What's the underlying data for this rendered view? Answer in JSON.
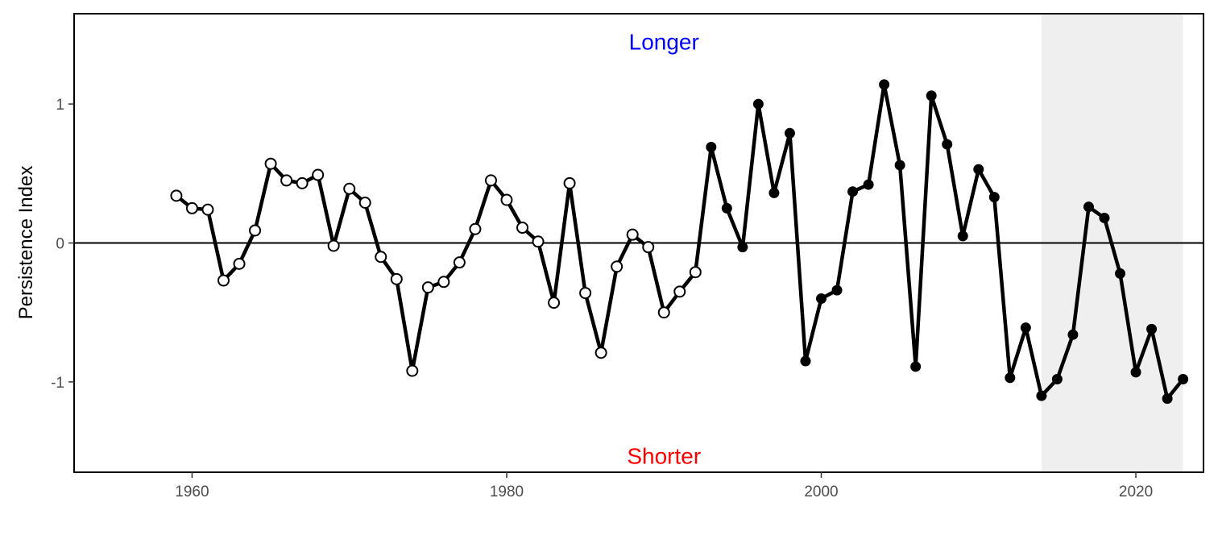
{
  "chart_data": {
    "type": "line",
    "title": "",
    "xlabel": "",
    "ylabel": "Persistence Index",
    "xlim": [
      1952.5,
      2024.3
    ],
    "ylim": [
      -1.65,
      1.65
    ],
    "xticks": [
      1960,
      1980,
      2000,
      2020
    ],
    "yticks": [
      -1,
      0,
      1
    ],
    "ytick_labels": [
      "-1",
      "0",
      "1"
    ],
    "grid": false,
    "legend": "none",
    "reference_line": 0,
    "shaded_period": [
      2014,
      2023
    ],
    "colors": {
      "line": "#000000",
      "shade": "#efefef",
      "longer": "#0000ff",
      "shorter": "#ff0000"
    },
    "annotations": [
      {
        "text": "Longer",
        "x": 1990,
        "y": 1.45,
        "color": "#0000ff"
      },
      {
        "text": "Shorter",
        "x": 1990,
        "y": -1.53,
        "color": "#ff0000"
      }
    ],
    "hollow_until": 1992,
    "x": [
      1959,
      1960,
      1961,
      1962,
      1963,
      1964,
      1965,
      1966,
      1967,
      1968,
      1969,
      1970,
      1971,
      1972,
      1973,
      1974,
      1975,
      1976,
      1977,
      1978,
      1979,
      1980,
      1981,
      1982,
      1983,
      1984,
      1985,
      1986,
      1987,
      1988,
      1989,
      1990,
      1991,
      1992,
      1993,
      1994,
      1995,
      1996,
      1997,
      1998,
      1999,
      2000,
      2001,
      2002,
      2003,
      2004,
      2005,
      2006,
      2007,
      2008,
      2009,
      2010,
      2011,
      2012,
      2013,
      2014,
      2015,
      2016,
      2017,
      2018,
      2019,
      2020,
      2021,
      2022,
      2023
    ],
    "series": [
      {
        "values": [
          0.34,
          0.25,
          0.24,
          -0.27,
          -0.15,
          0.09,
          0.57,
          0.45,
          0.43,
          0.49,
          -0.02,
          0.39,
          0.29,
          -0.1,
          -0.26,
          -0.92,
          -0.32,
          -0.28,
          -0.14,
          0.1,
          0.45,
          0.31,
          0.11,
          0.01,
          -0.43,
          0.43,
          -0.36,
          -0.79,
          -0.17,
          0.06,
          -0.03,
          -0.5,
          -0.35,
          -0.21,
          0.69,
          0.25,
          -0.03,
          1.0,
          0.36,
          0.79,
          -0.85,
          -0.4,
          -0.34,
          0.37,
          0.42,
          1.14,
          0.56,
          -0.89,
          1.06,
          0.71,
          0.05,
          0.53,
          0.33,
          -0.97,
          -0.61,
          -1.1,
          -0.98,
          -0.66,
          0.26,
          0.18,
          -0.22,
          -0.93,
          -0.62,
          -1.12,
          -0.98
        ]
      }
    ]
  }
}
